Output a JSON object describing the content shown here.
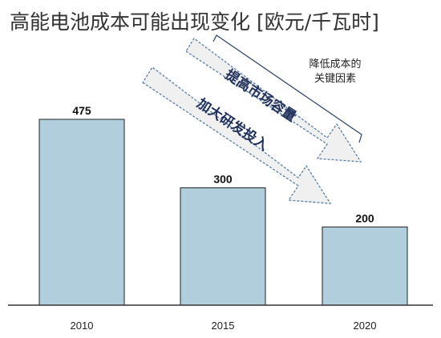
{
  "chart_data": {
    "type": "bar",
    "title": "高能电池成本可能出现变化 [欧元/千瓦时]",
    "categories": [
      "2010",
      "2015",
      "2020"
    ],
    "values": [
      475,
      300,
      200
    ],
    "data_labels": [
      "475",
      "300",
      "200"
    ],
    "ylim": [
      0,
      500
    ],
    "grid": false,
    "bar_color": "#b0cedc",
    "annotations": {
      "arrow_labels": [
        "提高市场容量",
        "加大研发投入"
      ],
      "note_lines": [
        "降低成本的",
        "关键因素"
      ],
      "arrow_fill": "#f0f0f0",
      "arrow_stroke": "#5a7fa5"
    }
  }
}
